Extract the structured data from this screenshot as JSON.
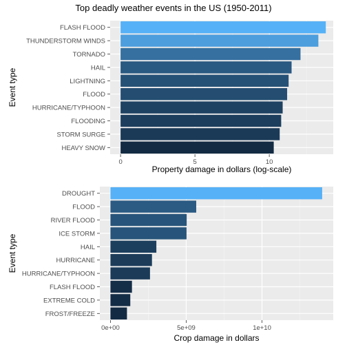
{
  "title": "Top deadly weather events in the US (1950-2011)",
  "colors": {
    "panel_bg": "#EBEBEB",
    "grid_major": "#FFFFFF",
    "grid_minor": "#F5F5F5",
    "tick_text": "#4D4D4D",
    "bar_low": "#132B43",
    "bar_high": "#56B1F7"
  },
  "chart_data": [
    {
      "type": "bar",
      "orientation": "horizontal",
      "categories": [
        "FLASH FLOOD",
        "THUNDERSTORM WINDS",
        "TORNADO",
        "HAIL",
        "LIGHTNING",
        "FLOOD",
        "HURRICANE/TYPHOON",
        "FLOODING",
        "STORM SURGE",
        "HEAVY SNOW"
      ],
      "values": [
        13.8,
        13.3,
        12.1,
        11.5,
        11.3,
        11.2,
        10.9,
        10.8,
        10.7,
        10.3
      ],
      "xlabel": "Property damage in dollars (log-scale)",
      "ylabel": "Event type",
      "xlim": [
        -0.7,
        14.3
      ],
      "xticks": [
        0,
        5,
        10
      ],
      "xtick_labels": [
        "0",
        "5",
        "10"
      ],
      "grid": true,
      "legend": "none",
      "fill": "gradient by value"
    },
    {
      "type": "bar",
      "orientation": "horizontal",
      "categories": [
        "DROUGHT",
        "FLOOD",
        "RIVER FLOOD",
        "ICE STORM",
        "HAIL",
        "HURRICANE",
        "HURRICANE/TYPHOON",
        "FLASH FLOOD",
        "EXTREME COLD",
        "FROST/FREEZE"
      ],
      "values": [
        13970000000,
        5660000000,
        5030000000,
        5020000000,
        3030000000,
        2740000000,
        2610000000,
        1420000000,
        1310000000,
        1090000000
      ],
      "xlabel": "Crop damage in dollars",
      "ylabel": "Event type",
      "xlim": [
        -700000000,
        14700000000
      ],
      "xticks": [
        0,
        5000000000,
        10000000000
      ],
      "xtick_labels": [
        "0e+00",
        "5e+09",
        "1e+10"
      ],
      "grid": true,
      "legend": "none",
      "fill": "gradient by value"
    }
  ]
}
